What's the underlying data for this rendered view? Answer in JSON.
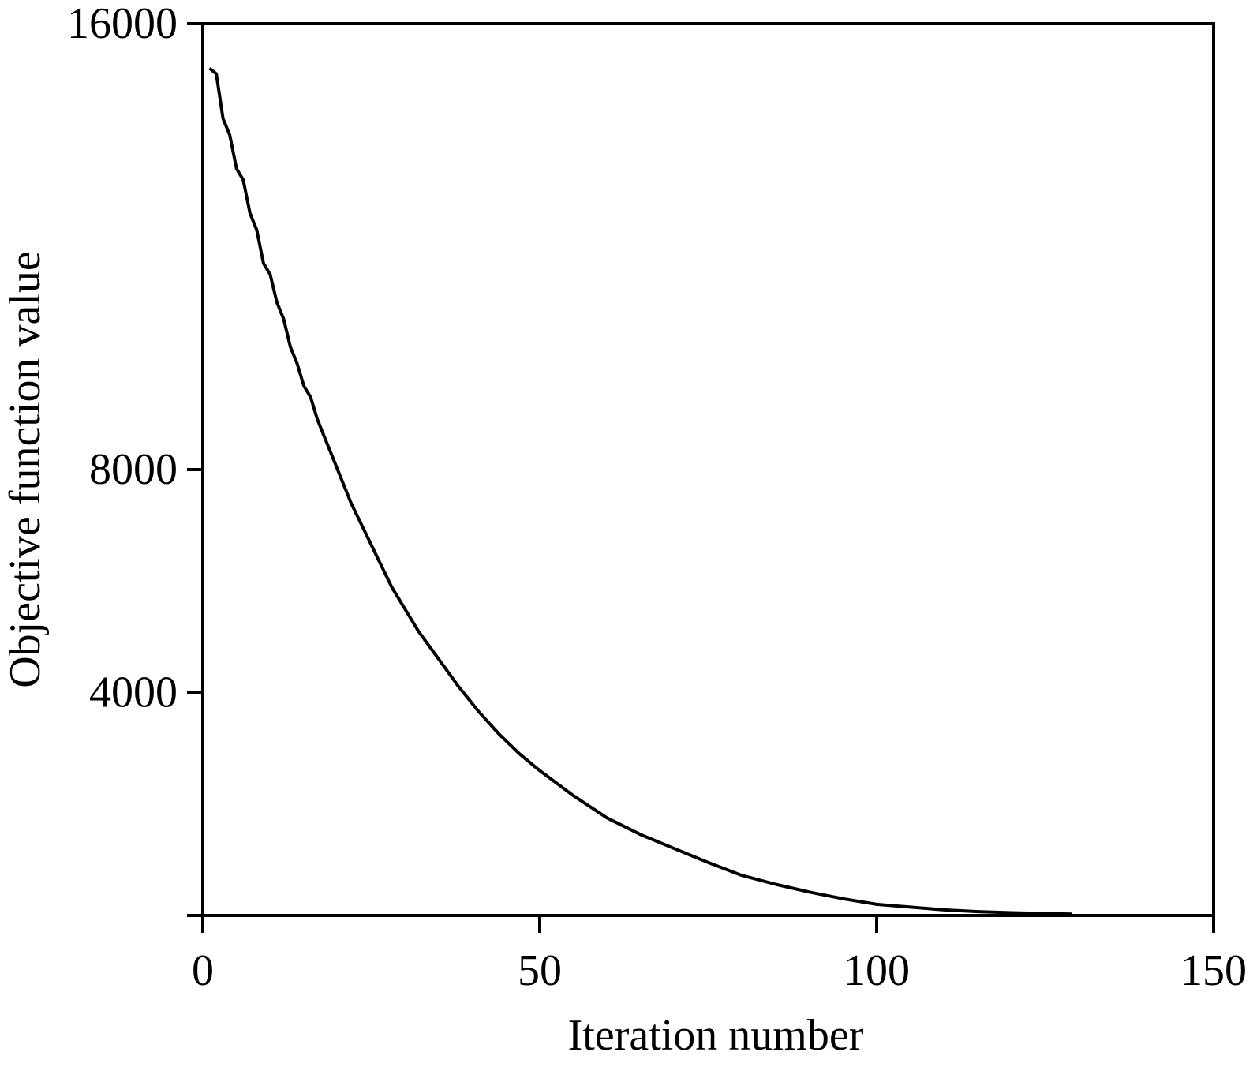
{
  "chart_data": {
    "type": "line",
    "title": "",
    "xlabel": "Iteration number",
    "ylabel": "Objective function value",
    "xlim": [
      0,
      150
    ],
    "ylim": [
      0,
      16000
    ],
    "y_scale_note": "",
    "x_ticks": [
      0,
      50,
      100,
      150
    ],
    "y_ticks": [
      4000,
      8000,
      16000
    ],
    "x_tick_labels": [
      "0",
      "50",
      "100",
      "150"
    ],
    "y_tick_labels": [
      "4000",
      "8000",
      "16000"
    ],
    "grid": false,
    "legend": "none",
    "line_color": "#000000",
    "series": [
      {
        "name": "",
        "x": [
          1,
          2,
          3,
          4,
          5,
          6,
          7,
          8,
          9,
          10,
          11,
          12,
          13,
          14,
          15,
          16,
          17,
          18,
          19,
          20,
          22,
          24,
          26,
          28,
          30,
          32,
          35,
          38,
          41,
          44,
          47,
          50,
          55,
          60,
          65,
          70,
          75,
          80,
          85,
          90,
          95,
          100,
          105,
          110,
          115,
          120,
          125,
          129
        ],
        "y": [
          15200,
          15100,
          14300,
          14000,
          13400,
          13200,
          12600,
          12300,
          11700,
          11500,
          11000,
          10700,
          10200,
          9900,
          9500,
          9300,
          8900,
          8600,
          8300,
          8000,
          7400,
          6900,
          6400,
          5900,
          5500,
          5100,
          4600,
          4100,
          3650,
          3250,
          2900,
          2600,
          2150,
          1750,
          1450,
          1200,
          950,
          720,
          560,
          420,
          300,
          200,
          150,
          100,
          70,
          50,
          35,
          25
        ]
      }
    ]
  }
}
